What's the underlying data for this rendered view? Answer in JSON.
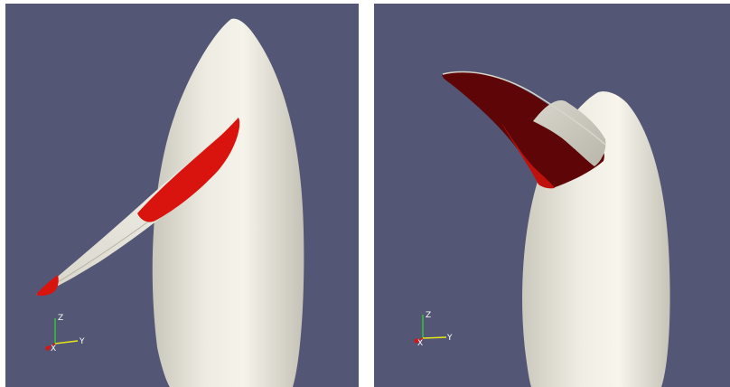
{
  "viewports": [
    {
      "id": "left",
      "axes": {
        "z_label": "Z",
        "y_label": "Y",
        "x_label": "X"
      }
    },
    {
      "id": "right",
      "axes": {
        "z_label": "Z",
        "y_label": "Y",
        "x_label": "X"
      }
    }
  ],
  "colors": {
    "background": "#535674",
    "body": "#efede4",
    "red_region": "#d9140f",
    "dark_red_region": "#5e0607",
    "axis_z": "#36c236",
    "axis_y": "#e6e61a",
    "axis_x": "#d01818"
  }
}
